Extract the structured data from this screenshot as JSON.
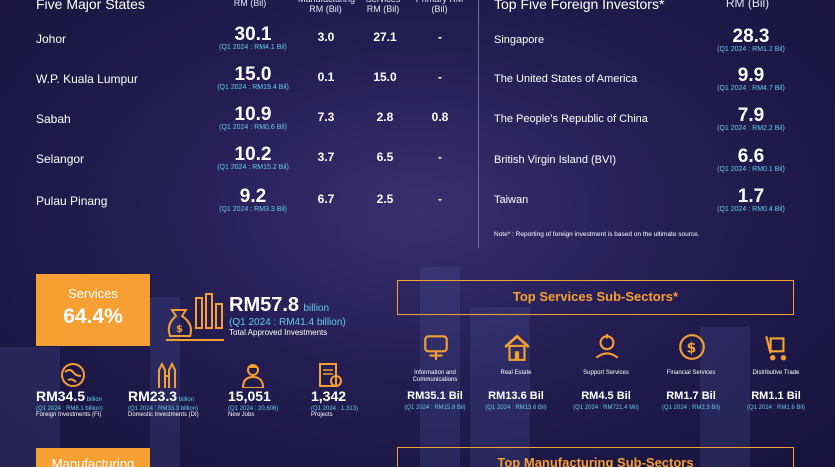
{
  "states": {
    "title": "Five Major States",
    "col_total": "RM (Bil)",
    "col_mfg": "Manufacturing RM (Bil)",
    "col_svc": "Services RM (Bil)",
    "col_pri": "Primary RM (Bil)",
    "rows": [
      {
        "name": "Johor",
        "total": "30.1",
        "q1": "(Q1 2024 : RM4.1 Bil)",
        "mfg": "3.0",
        "svc": "27.1",
        "pri": "-"
      },
      {
        "name": "W.P. Kuala Lumpur",
        "total": "15.0",
        "q1": "(Q1 2024 : RM19.4 Bil)",
        "mfg": "0.1",
        "svc": "15.0",
        "pri": "-"
      },
      {
        "name": "Sabah",
        "total": "10.9",
        "q1": "(Q1 2024 : RM0.6 Bil)",
        "mfg": "7.3",
        "svc": "2.8",
        "pri": "0.8"
      },
      {
        "name": "Selangor",
        "total": "10.2",
        "q1": "(Q1 2024 : RM15.2 Bil)",
        "mfg": "3.7",
        "svc": "6.5",
        "pri": "-"
      },
      {
        "name": "Pulau Pinang",
        "total": "9.2",
        "q1": "(Q1 2024 : RM3.3 Bil)",
        "mfg": "6.7",
        "svc": "2.5",
        "pri": "-"
      }
    ]
  },
  "investors": {
    "title": "Top Five Foreign Investors*",
    "col": "RM (Bil)",
    "rows": [
      {
        "name": "Singapore",
        "total": "28.3",
        "q1": "(Q1 2024 : RM1.2 Bil)"
      },
      {
        "name": "The United States of America",
        "total": "9.9",
        "q1": "(Q1 2024 : RM4.7 Bil)"
      },
      {
        "name": "The People’s Republic of China",
        "total": "7.9",
        "q1": "(Q1 2024 : RM2.2 Bil)"
      },
      {
        "name": "British Virgin Island (BVI)",
        "total": "6.6",
        "q1": "(Q1 2024 : RM0.1 Bil)"
      },
      {
        "name": "Taiwan",
        "total": "1.7",
        "q1": "(Q1 2024 : RM0.4 Bil)"
      }
    ],
    "note": "Note* : Reporting of foreign investment is based on the ultimate source."
  },
  "services": {
    "label": "Services",
    "pct": "64.4%",
    "total": "RM57.8",
    "total_unit": "billion",
    "total_q1": "(Q1 2024 : RM41.4 billion)",
    "total_label": "Total Approved Investments",
    "stats": [
      {
        "big": "RM34.5",
        "unit": "billion",
        "sub": "(Q1 2024 : RM8.1 billion)",
        "label": "Foreign Investments (FI)"
      },
      {
        "big": "RM23.3",
        "unit": "billion",
        "sub": "(Q1 2024 : RM33.3 billion)",
        "label": "Domestic Investments (DI)"
      },
      {
        "big": "15,051",
        "unit": "",
        "sub": "(Q1 2024 : 20,606)",
        "label": "New Jobs"
      },
      {
        "big": "1,342",
        "unit": "",
        "sub": "(Q1 2024 : 1,313)",
        "label": "Projects"
      }
    ],
    "subsectors_title": "Top Services Sub-Sectors*",
    "subsectors": [
      {
        "label": "Information and Communications",
        "val": "RM35.1 Bil",
        "sub": "(Q1 2024 : RM15.8 Bil)"
      },
      {
        "label": "Real Estate",
        "val": "RM13.6 Bil",
        "sub": "(Q1 2024 : RM13.6 Bil)"
      },
      {
        "label": "Support Services",
        "val": "RM4.5 Bil",
        "sub": "(Q1 2024 : RM721.4 Mil)"
      },
      {
        "label": "Financial Services",
        "val": "RM1.7 Bil",
        "sub": "(Q1 2024 : RM2.3 Bil)"
      },
      {
        "label": "Distributive Trade",
        "val": "RM1.1 Bil",
        "sub": "(Q1 2024 : RM1.6 Bil)"
      }
    ]
  },
  "manufacturing": {
    "label": "Manufacturing",
    "subsectors_title": "Top Manufacturing Sub-Sectors"
  },
  "colors": {
    "accent": "#f6a034",
    "cyan": "#5fd0f0",
    "bg": "#241d52"
  }
}
